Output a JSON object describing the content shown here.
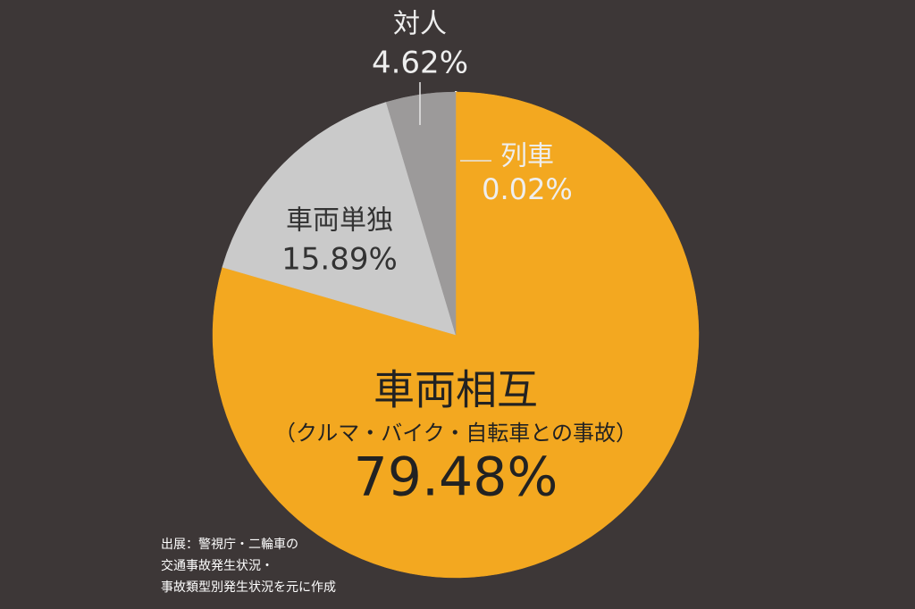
{
  "chart_data": {
    "type": "pie",
    "categories": [
      "列車",
      "車両相互",
      "車両単独",
      "対人"
    ],
    "values": [
      0.02,
      79.48,
      15.89,
      4.62
    ],
    "value_labels": [
      "0.02%",
      "79.48%",
      "15.89%",
      "4.62%"
    ],
    "colors": [
      "#ffffff",
      "#f3a820",
      "#cacaca",
      "#9c9a9a"
    ],
    "annotations": [
      "（クルマ・バイク・自転車との事故）"
    ],
    "source": [
      "出展：警視庁・二輪車の",
      "交通事故発生状況・",
      "事故類型別発生状況を元に作成"
    ]
  }
}
